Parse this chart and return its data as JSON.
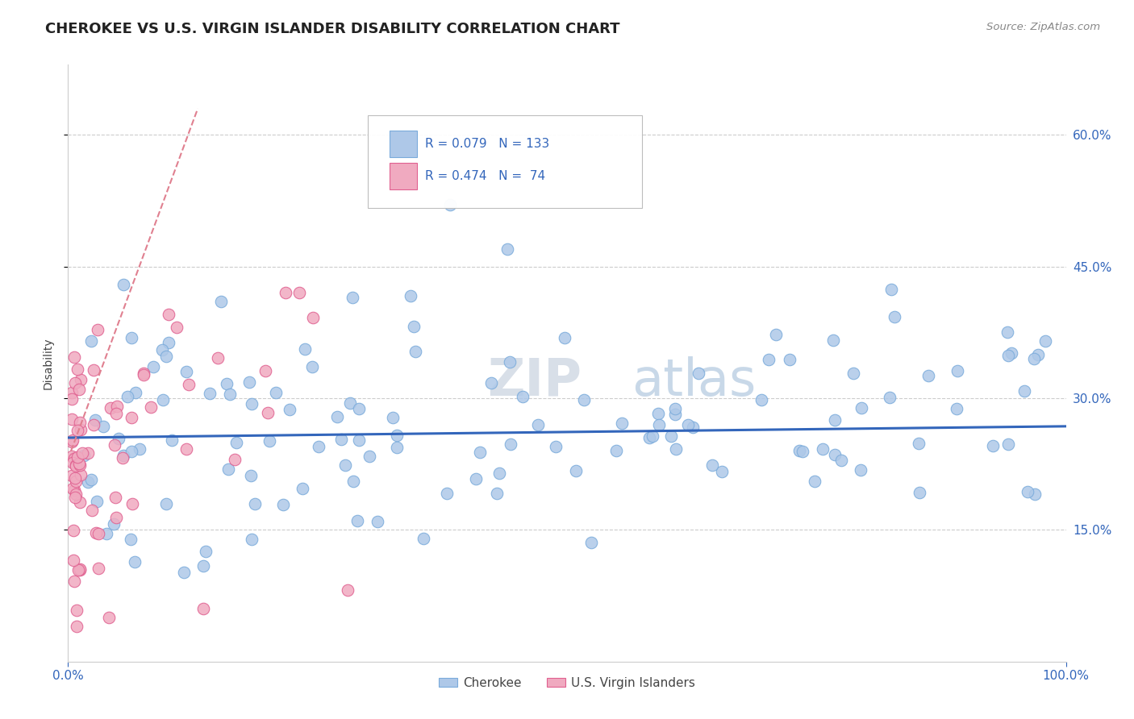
{
  "title": "CHEROKEE VS U.S. VIRGIN ISLANDER DISABILITY CORRELATION CHART",
  "source_text": "Source: ZipAtlas.com",
  "ylabel": "Disability",
  "xlim": [
    0.0,
    1.0
  ],
  "ylim": [
    0.0,
    0.68
  ],
  "ytick_positions": [
    0.15,
    0.3,
    0.45,
    0.6
  ],
  "grid_color": "#cccccc",
  "background_color": "#ffffff",
  "cherokee_color": "#aec8e8",
  "cherokee_edge_color": "#7aabdb",
  "virgin_islander_color": "#f0aac0",
  "virgin_islander_edge_color": "#e06090",
  "trend_blue_color": "#3366bb",
  "trend_pink_color": "#e08090",
  "watermark_color": "#e0e8f0",
  "legend_R_blue": "R = 0.079",
  "legend_N_blue": "N = 133",
  "legend_R_pink": "R = 0.474",
  "legend_N_pink": "N =  74",
  "cherokee_label": "Cherokee",
  "virgin_label": "U.S. Virgin Islanders",
  "legend_color": "#3366bb",
  "title_color": "#222222",
  "source_color": "#888888",
  "ylabel_color": "#444444"
}
